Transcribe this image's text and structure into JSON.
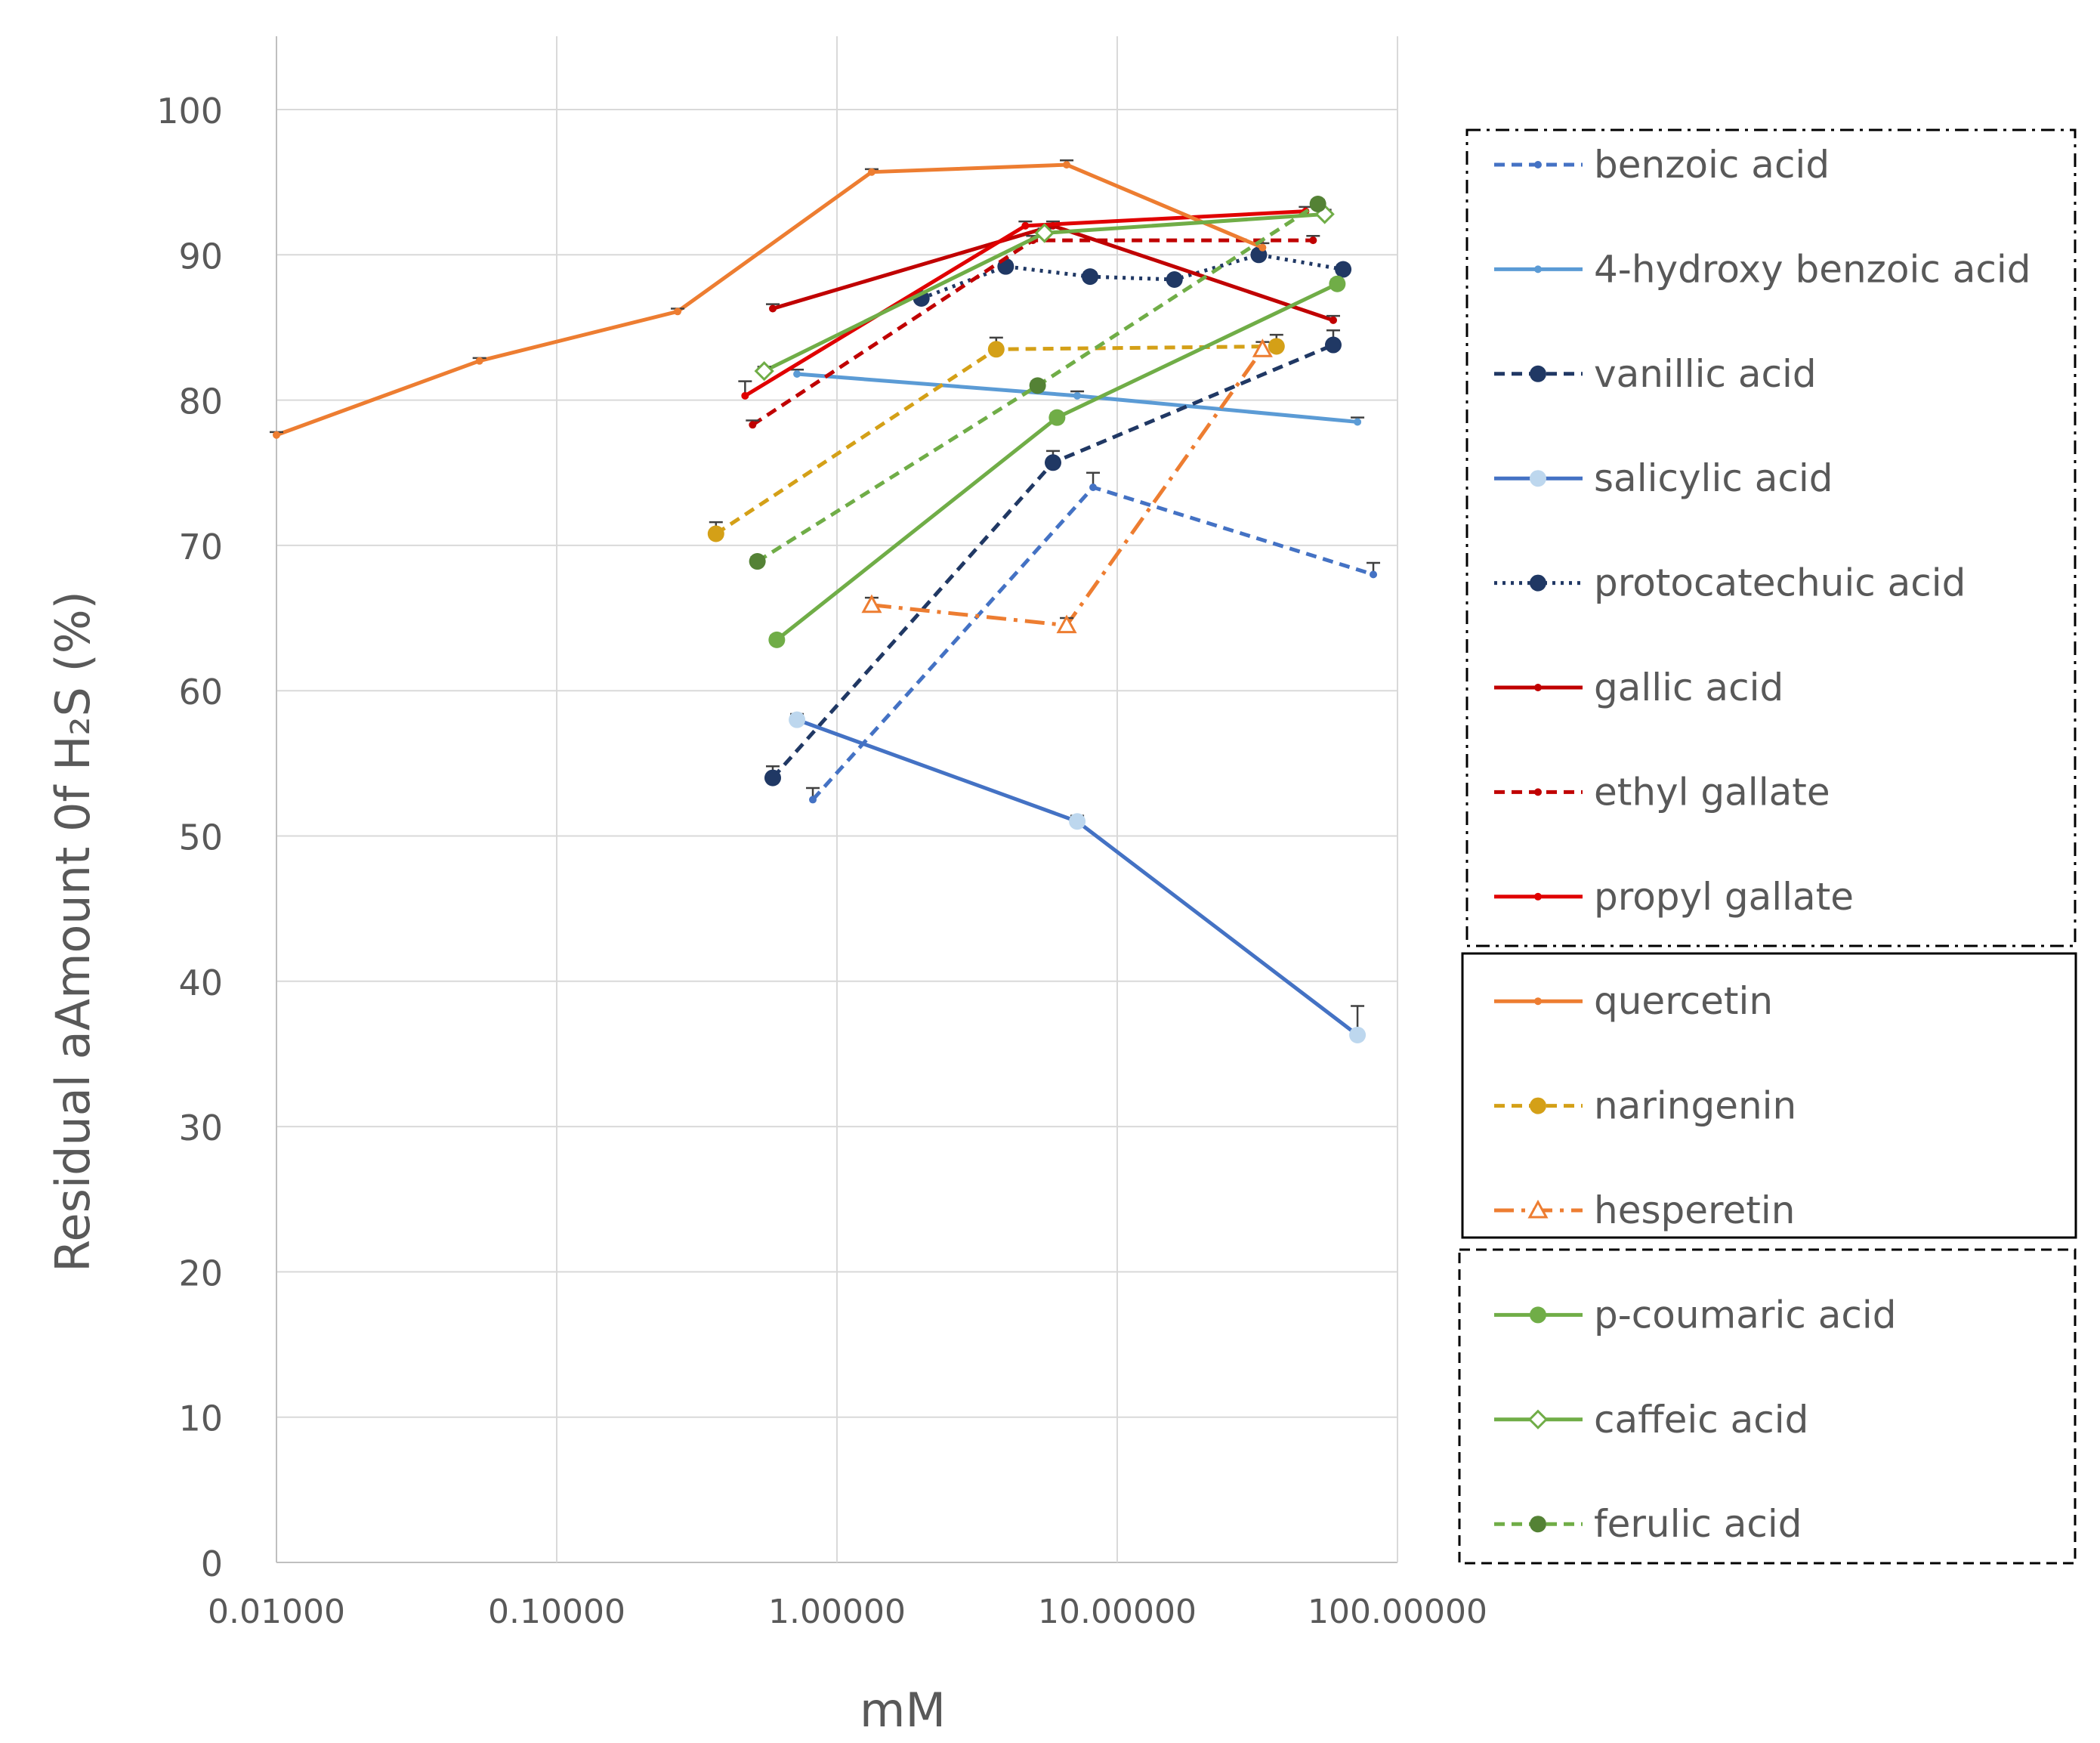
{
  "chart_data": {
    "type": "line",
    "title": "",
    "xlabel": "mM",
    "ylabel": "Residual aAmount 0f H₂S (%)",
    "xscale": "log",
    "xlim": [
      0.01,
      100
    ],
    "ylim": [
      0,
      100
    ],
    "x_tick_labels": [
      "0.01000",
      "0.10000",
      "1.00000",
      "10.00000",
      "100.00000"
    ],
    "y_tick_labels": [
      "0",
      "10",
      "20",
      "30",
      "40",
      "50",
      "60",
      "70",
      "80",
      "90",
      "100"
    ],
    "grid": true,
    "legend_position": "right",
    "legend_groups": [
      {
        "style": "dash-dot",
        "members": [
          "benzoic acid",
          "4-hydroxy benzoic acid",
          "vanillic acid",
          "salicylic acid",
          "protocatechuic acid",
          "gallic acid",
          "ethyl gallate",
          "propyl gallate"
        ]
      },
      {
        "style": "solid",
        "members": [
          "quercetin",
          "naringenin",
          "hesperetin"
        ]
      },
      {
        "style": "dashed",
        "members": [
          "p-coumaric acid",
          "caffeic acid",
          "ferulic acid"
        ]
      }
    ],
    "series": [
      {
        "name": "benzoic acid",
        "color": "#4472C4",
        "dash": "dash",
        "marker": "small",
        "x": [
          0.82,
          8.2,
          82.0
        ],
        "y": [
          52.5,
          74.0,
          68.0
        ],
        "err": [
          0.8,
          1.0,
          0.8
        ]
      },
      {
        "name": "4-hydroxy benzoic acid",
        "color": "#5B9BD5",
        "dash": "solid",
        "marker": "small",
        "x": [
          0.72,
          7.2,
          72.0
        ],
        "y": [
          81.8,
          80.3,
          78.5
        ],
        "err": [
          0.3,
          0.3,
          0.3
        ]
      },
      {
        "name": "vanillic acid",
        "color": "#203864",
        "dash": "dash",
        "marker": "circle",
        "x": [
          0.59,
          5.9,
          59.0
        ],
        "y": [
          54.0,
          75.7,
          83.8
        ],
        "err": [
          0.8,
          0.8,
          1.0
        ]
      },
      {
        "name": "salicylic acid",
        "color": "#4472C4",
        "dash": "solid",
        "marker": "circle-light",
        "x": [
          0.72,
          7.2,
          72.0
        ],
        "y": [
          58.0,
          51.0,
          36.3
        ],
        "err": [
          0.4,
          0.4,
          2.0
        ]
      },
      {
        "name": "protocatechuic acid",
        "color": "#203864",
        "dash": "dot",
        "marker": "circle",
        "x": [
          2.0,
          4.0,
          8.0,
          16.0,
          32.0,
          64.0
        ],
        "y": [
          87.0,
          89.2,
          88.5,
          88.3,
          90.0,
          89.0
        ],
        "err": [
          0.3,
          0.3,
          0.3,
          0.3,
          0.3,
          0.3
        ]
      },
      {
        "name": "gallic acid",
        "color": "#C00000",
        "dash": "solid",
        "marker": "small",
        "x": [
          0.59,
          5.9,
          59.0
        ],
        "y": [
          86.3,
          92.0,
          85.5
        ],
        "err": [
          0.3,
          0.3,
          0.3
        ]
      },
      {
        "name": "ethyl gallate",
        "color": "#C00000",
        "dash": "dash",
        "marker": "small",
        "x": [
          0.5,
          5.0,
          50.0
        ],
        "y": [
          78.3,
          91.0,
          91.0
        ],
        "err": [
          0.3,
          0.3,
          0.3
        ]
      },
      {
        "name": "propyl gallate",
        "color": "#E00000",
        "dash": "solid",
        "marker": "small",
        "x": [
          0.47,
          4.7,
          47.0
        ],
        "y": [
          80.3,
          92.0,
          93.0
        ],
        "err": [
          1.0,
          0.3,
          0.3
        ]
      },
      {
        "name": "quercetin",
        "color": "#ED7D31",
        "dash": "solid",
        "marker": "small",
        "x": [
          0.01,
          0.053,
          0.27,
          1.33,
          6.6,
          33.0
        ],
        "y": [
          77.6,
          82.7,
          86.1,
          95.7,
          96.2,
          90.5
        ],
        "err": [
          0.2,
          0.2,
          0.2,
          0.2,
          0.3,
          0.3
        ]
      },
      {
        "name": "naringenin",
        "color": "#D4A017",
        "dash": "dash",
        "marker": "circle",
        "x": [
          0.37,
          3.7,
          37.0
        ],
        "y": [
          70.8,
          83.5,
          83.7
        ],
        "err": [
          0.8,
          0.8,
          0.8
        ]
      },
      {
        "name": "hesperetin",
        "color": "#ED7D31",
        "dash": "dashdot",
        "marker": "triangle",
        "x": [
          1.33,
          6.6,
          33.0
        ],
        "y": [
          65.9,
          64.5,
          83.5
        ],
        "err": [
          0.5,
          0.5,
          0.5
        ]
      },
      {
        "name": "p-coumaric acid",
        "color": "#70AD47",
        "dash": "solid",
        "marker": "circle",
        "x": [
          0.61,
          6.1,
          61.0
        ],
        "y": [
          63.5,
          78.8,
          88.0
        ],
        "err": [
          0.3,
          0.3,
          0.3
        ]
      },
      {
        "name": "caffeic acid",
        "color": "#70AD47",
        "dash": "solid",
        "marker": "diamond-open",
        "x": [
          0.55,
          5.5,
          55.0
        ],
        "y": [
          82.0,
          91.5,
          92.8
        ],
        "err": [
          0.3,
          0.3,
          0.3
        ]
      },
      {
        "name": "ferulic acid",
        "color": "#70AD47",
        "dash": "dash",
        "marker": "circle-dark",
        "x": [
          0.52,
          5.2,
          52.0
        ],
        "y": [
          68.9,
          81.0,
          93.5
        ],
        "err": [
          0.3,
          0.3,
          0.3
        ]
      }
    ]
  }
}
